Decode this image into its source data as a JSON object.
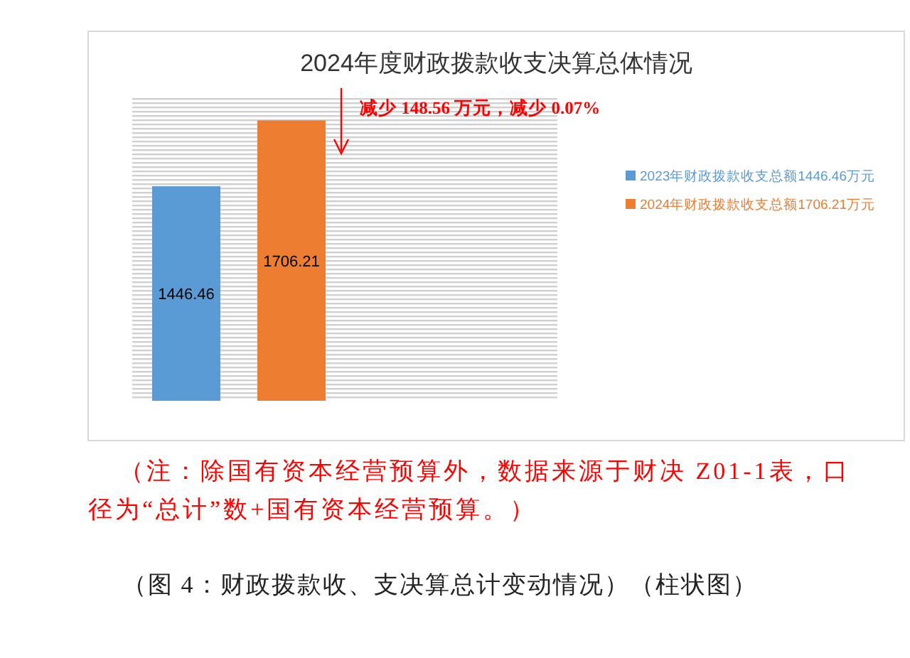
{
  "chart_data": {
    "type": "bar",
    "title": "2024年度财政拨款收支决算总体情况",
    "categories": [
      null
    ],
    "series": [
      {
        "name": "2023年财政拨款收支总额1446.46万元",
        "color": "#5b9bd5",
        "values": [
          1446.46
        ]
      },
      {
        "name": "2024年财政拨款收支总额1706.21万元",
        "color": "#ed7d31",
        "values": [
          1706.21
        ]
      }
    ],
    "ylim": [
      600,
      1800
    ],
    "data_labels": true,
    "legend": "right",
    "annotations": [
      "减少 148.56 万元，减少 0.07%",
      "（注：除国有资本经营预算外，数据来源于财决 Z01-1表，口径为“总计”数+国有资本经营预算。）",
      "（图 4：财政拨款收、支决算总计变动情况）（柱状图）"
    ]
  }
}
